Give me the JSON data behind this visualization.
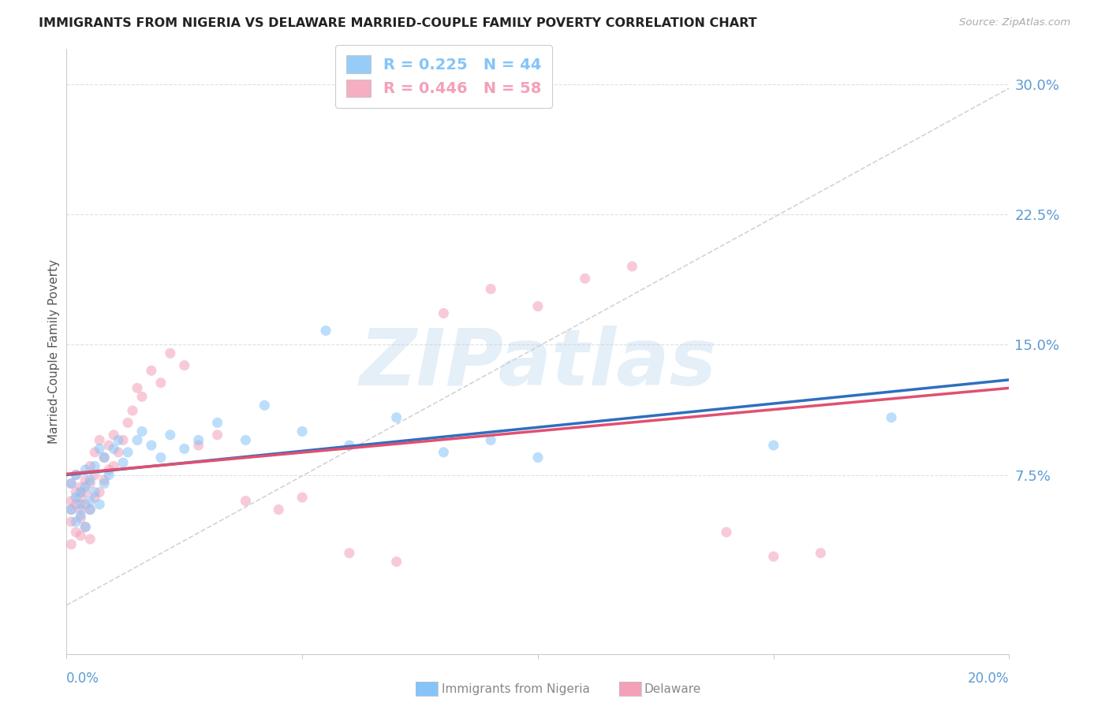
{
  "title": "IMMIGRANTS FROM NIGERIA VS DELAWARE MARRIED-COUPLE FAMILY POVERTY CORRELATION CHART",
  "source": "Source: ZipAtlas.com",
  "ylabel": "Married-Couple Family Poverty",
  "ytick_labels": [
    "7.5%",
    "15.0%",
    "22.5%",
    "30.0%"
  ],
  "ytick_values": [
    0.075,
    0.15,
    0.225,
    0.3
  ],
  "xlim": [
    0.0,
    0.2
  ],
  "ylim": [
    -0.028,
    0.32
  ],
  "legend_r1": "R = 0.225   N = 44",
  "legend_r2": "R = 0.446   N = 58",
  "nigeria_color": "#85C4F8",
  "delaware_color": "#F4A0B8",
  "nigeria_line_color": "#2E6FBF",
  "delaware_line_color": "#E05070",
  "diagonal_line_color": "#CCCCCC",
  "background_color": "#FFFFFF",
  "grid_color": "#E0E0E0",
  "axis_label_color": "#5B9BD5",
  "title_color": "#222222",
  "marker_size": 90,
  "marker_alpha": 0.55,
  "line_width": 2.5,
  "watermark": "ZIPatlas",
  "nigeria_x": [
    0.001,
    0.001,
    0.002,
    0.002,
    0.002,
    0.003,
    0.003,
    0.003,
    0.004,
    0.004,
    0.004,
    0.005,
    0.005,
    0.005,
    0.006,
    0.006,
    0.007,
    0.007,
    0.008,
    0.008,
    0.009,
    0.01,
    0.011,
    0.012,
    0.013,
    0.015,
    0.016,
    0.018,
    0.02,
    0.022,
    0.025,
    0.028,
    0.032,
    0.038,
    0.042,
    0.05,
    0.055,
    0.06,
    0.07,
    0.08,
    0.09,
    0.1,
    0.15,
    0.175
  ],
  "nigeria_y": [
    0.055,
    0.07,
    0.048,
    0.062,
    0.075,
    0.052,
    0.065,
    0.058,
    0.045,
    0.068,
    0.078,
    0.06,
    0.055,
    0.072,
    0.065,
    0.08,
    0.058,
    0.09,
    0.07,
    0.085,
    0.075,
    0.09,
    0.095,
    0.082,
    0.088,
    0.095,
    0.1,
    0.092,
    0.085,
    0.098,
    0.09,
    0.095,
    0.105,
    0.095,
    0.115,
    0.1,
    0.158,
    0.092,
    0.108,
    0.088,
    0.095,
    0.085,
    0.092,
    0.108
  ],
  "delaware_x": [
    0.001,
    0.001,
    0.001,
    0.001,
    0.001,
    0.002,
    0.002,
    0.002,
    0.002,
    0.003,
    0.003,
    0.003,
    0.003,
    0.003,
    0.004,
    0.004,
    0.004,
    0.004,
    0.005,
    0.005,
    0.005,
    0.005,
    0.006,
    0.006,
    0.006,
    0.007,
    0.007,
    0.008,
    0.008,
    0.009,
    0.009,
    0.01,
    0.01,
    0.011,
    0.012,
    0.013,
    0.014,
    0.015,
    0.016,
    0.018,
    0.02,
    0.022,
    0.025,
    0.028,
    0.032,
    0.038,
    0.045,
    0.05,
    0.06,
    0.07,
    0.08,
    0.09,
    0.1,
    0.11,
    0.12,
    0.14,
    0.15,
    0.16
  ],
  "delaware_y": [
    0.055,
    0.06,
    0.048,
    0.035,
    0.07,
    0.042,
    0.058,
    0.065,
    0.075,
    0.05,
    0.055,
    0.062,
    0.068,
    0.04,
    0.058,
    0.072,
    0.045,
    0.065,
    0.055,
    0.07,
    0.038,
    0.08,
    0.062,
    0.075,
    0.088,
    0.065,
    0.095,
    0.072,
    0.085,
    0.078,
    0.092,
    0.08,
    0.098,
    0.088,
    0.095,
    0.105,
    0.112,
    0.125,
    0.12,
    0.135,
    0.128,
    0.145,
    0.138,
    0.092,
    0.098,
    0.06,
    0.055,
    0.062,
    0.03,
    0.025,
    0.168,
    0.182,
    0.172,
    0.188,
    0.195,
    0.042,
    0.028,
    0.03
  ]
}
